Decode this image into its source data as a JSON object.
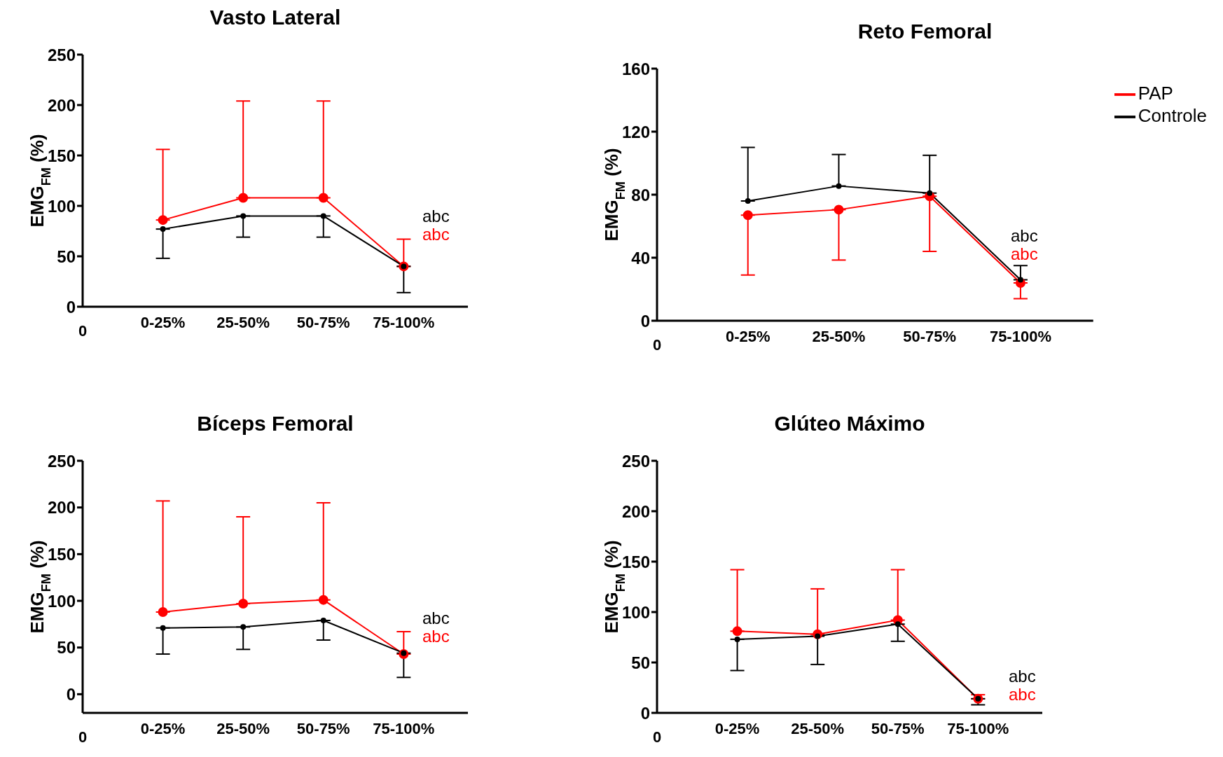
{
  "chart_data": [
    {
      "type": "line",
      "title": "Vasto Lateral",
      "ylabel": "EMG$_{FM}$ (%)",
      "categories": [
        "0",
        "0-25%",
        "25-50%",
        "50-75%",
        "75-100%"
      ],
      "ylim": [
        0,
        250
      ],
      "yticks": [
        0,
        50,
        100,
        150,
        200,
        250
      ],
      "marker": "circle",
      "legend": false,
      "series": [
        {
          "color": "#ff0000",
          "values": [
            null,
            86,
            108,
            108,
            40
          ],
          "errors": [
            null,
            [
              86,
              156
            ],
            [
              108,
              204
            ],
            [
              108,
              204
            ],
            [
              40,
              67
            ]
          ]
        },
        {
          "color": "#000000",
          "values": [
            null,
            77,
            90,
            90,
            40
          ],
          "errors": [
            null,
            [
              48,
              77
            ],
            [
              69,
              90
            ],
            [
              69,
              90
            ],
            [
              14,
              40
            ]
          ]
        }
      ],
      "annotations": [
        "abc",
        "abc"
      ]
    },
    {
      "type": "line",
      "title": "Reto Femoral",
      "ylabel": "EMG$_{FM}$ (%)",
      "categories": [
        "0",
        "0-25%",
        "25-50%",
        "50-75%",
        "75-100%"
      ],
      "ylim": [
        0,
        160
      ],
      "yticks": [
        0,
        40,
        80,
        120,
        160
      ],
      "marker": "circle",
      "legend": "top right",
      "series": [
        {
          "name": "PAP",
          "color": "#ff0000",
          "values": [
            null,
            67,
            70.5,
            79,
            24
          ],
          "errors": [
            null,
            [
              29,
              67
            ],
            [
              38.5,
              70.5
            ],
            [
              44,
              79
            ],
            [
              14,
              24
            ]
          ]
        },
        {
          "name": "Controle",
          "color": "#000000",
          "values": [
            null,
            76,
            85.5,
            81,
            26
          ],
          "errors": [
            null,
            [
              76,
              110
            ],
            [
              85.5,
              105.5
            ],
            [
              81,
              105
            ],
            [
              26,
              35
            ]
          ]
        }
      ],
      "annotations": [
        "abc",
        "abc"
      ]
    },
    {
      "type": "line",
      "title": "Bíceps Femoral",
      "ylabel": "EMG$_{FM}$ (%)",
      "categories": [
        "0",
        "0-25%",
        "25-50%",
        "50-75%",
        "75-100%"
      ],
      "ylim": [
        -20,
        250
      ],
      "yticks": [
        0,
        50,
        100,
        150,
        200,
        250
      ],
      "marker": "circle",
      "legend": false,
      "series": [
        {
          "color": "#ff0000",
          "values": [
            null,
            88,
            97,
            101,
            43
          ],
          "errors": [
            null,
            [
              88,
              207
            ],
            [
              97,
              190
            ],
            [
              101,
              205
            ],
            [
              43,
              67
            ]
          ]
        },
        {
          "color": "#000000",
          "values": [
            null,
            71,
            72,
            79,
            44
          ],
          "errors": [
            null,
            [
              43,
              71
            ],
            [
              48,
              72
            ],
            [
              58,
              79
            ],
            [
              18,
              44
            ]
          ]
        }
      ],
      "annotations": [
        "abc",
        "abc"
      ]
    },
    {
      "type": "line",
      "title": "Glúteo Máximo",
      "ylabel": "EMG$_{FM}$ (%)",
      "categories": [
        "0",
        "0-25%",
        "25-50%",
        "50-75%",
        "75-100%"
      ],
      "ylim": [
        0,
        250
      ],
      "yticks": [
        0,
        50,
        100,
        150,
        200,
        250
      ],
      "marker": "circle",
      "legend": false,
      "series": [
        {
          "color": "#ff0000",
          "values": [
            null,
            81,
            78,
            92,
            14
          ],
          "errors": [
            null,
            [
              81,
              142
            ],
            [
              78,
              123
            ],
            [
              92,
              142
            ],
            [
              14,
              18
            ]
          ]
        },
        {
          "color": "#000000",
          "values": [
            null,
            73,
            76,
            88,
            14
          ],
          "errors": [
            null,
            [
              42,
              73
            ],
            [
              48,
              76
            ],
            [
              71,
              88
            ],
            [
              8,
              14
            ]
          ]
        }
      ],
      "annotations": [
        "abc",
        "abc"
      ]
    }
  ]
}
